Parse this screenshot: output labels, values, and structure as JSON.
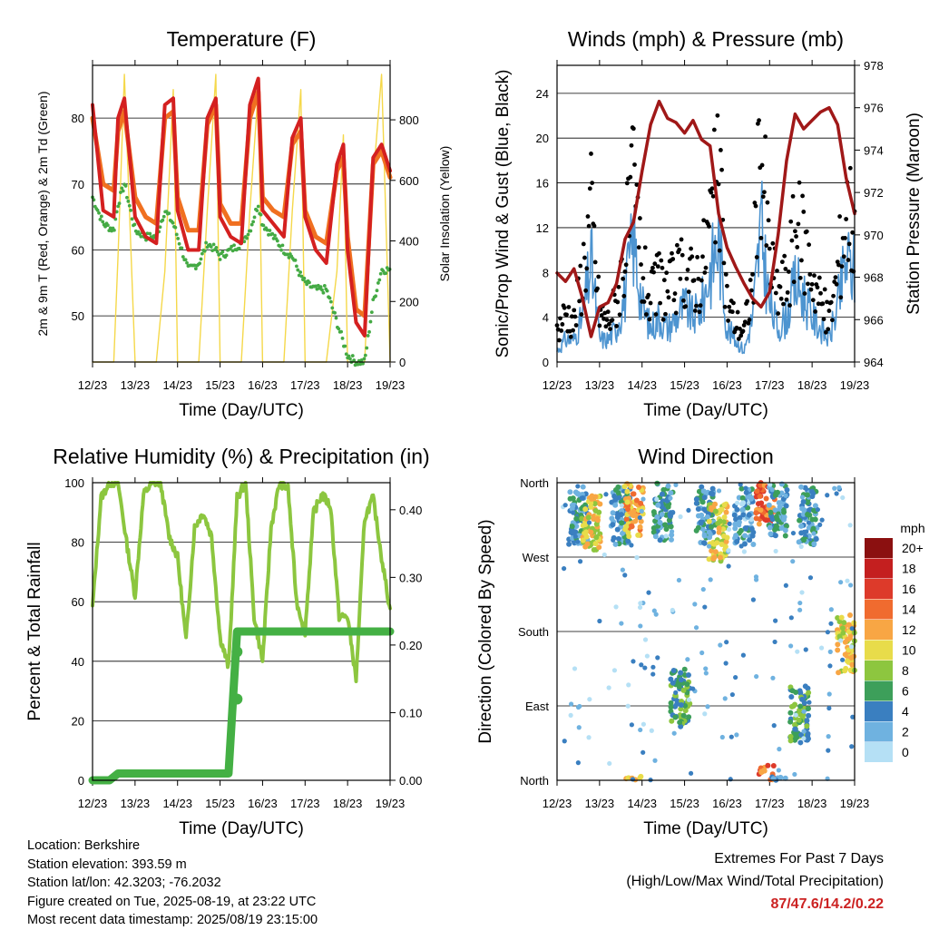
{
  "x_ticks": [
    "12/23",
    "13/23",
    "14/23",
    "15/23",
    "16/23",
    "17/23",
    "18/23",
    "19/23"
  ],
  "colors": {
    "temp2m": "#d42020",
    "temp9m": "#f07020",
    "dewpoint": "#44aa44",
    "solar": "#f5d84a",
    "wind": "#4d94d0",
    "gust": "#000000",
    "pressure": "#a01818",
    "rh": "#8cc63f",
    "precip": "#44b044"
  },
  "extremes": {
    "line1": "Extremes For Past 7 Days",
    "line2": "(High/Low/Max Wind/Total Precipitation)",
    "values": "87/47.6/14.2/0.22"
  },
  "footer": {
    "location": "Location: Berkshire",
    "elevation": "Station elevation: 393.59 m",
    "latlon": "Station lat/lon: 42.3203; -76.2032",
    "created": "Figure created on Tue, 2025-08-19, at 23:22 UTC",
    "recent": "Most recent data timestamp: 2025/08/19 23:15:00"
  },
  "chart_data": [
    {
      "type": "line",
      "title": "Temperature (F)",
      "xlabel": "Time (Day/UTC)",
      "ylabel": "2m & 9m T (Red, Orange) & 2m Td (Green)",
      "ylabel_right": "Solar Insolation (Yellow)",
      "ylim": [
        43,
        88
      ],
      "yticks": [
        50,
        60,
        70,
        80
      ],
      "ylim_right": [
        0,
        980
      ],
      "yticks_right": [
        0,
        200,
        400,
        600,
        800
      ],
      "x": [
        12.0,
        12.25,
        12.5,
        12.6,
        12.75,
        13.0,
        13.25,
        13.5,
        13.7,
        13.9,
        14.0,
        14.25,
        14.5,
        14.7,
        14.9,
        15.0,
        15.25,
        15.5,
        15.7,
        15.9,
        16.0,
        16.25,
        16.5,
        16.7,
        16.9,
        17.0,
        17.25,
        17.5,
        17.75,
        17.9,
        18.0,
        18.2,
        18.4,
        18.6,
        18.8,
        19.0
      ],
      "series": [
        {
          "name": "2m T",
          "values": [
            82,
            66,
            65,
            80,
            83,
            65,
            62,
            61,
            82,
            83,
            66,
            60,
            60,
            80,
            83,
            65,
            62,
            61,
            82,
            86,
            66,
            64,
            62,
            77,
            80,
            65,
            60,
            58,
            73,
            76,
            60,
            49,
            47,
            74,
            76,
            72
          ]
        },
        {
          "name": "9m T",
          "values": [
            80,
            70,
            69,
            78,
            81,
            68,
            65,
            64,
            80,
            81,
            68,
            63,
            63,
            79,
            82,
            67,
            64,
            64,
            80,
            84,
            68,
            66,
            65,
            76,
            78,
            66,
            62,
            61,
            72,
            74,
            62,
            51,
            50,
            73,
            75,
            71
          ]
        },
        {
          "name": "2m Td",
          "values": [
            68,
            64,
            63,
            67,
            70,
            63,
            62,
            62,
            66,
            64,
            62,
            57,
            58,
            61,
            60,
            59,
            60,
            61,
            63,
            67,
            64,
            62,
            60,
            59,
            56,
            55,
            54,
            54,
            49,
            46,
            44,
            43,
            43,
            52,
            57,
            57
          ]
        },
        {
          "name": "Solar Insolation",
          "axis": "right",
          "values": [
            0,
            0,
            0,
            350,
            950,
            0,
            0,
            0,
            300,
            900,
            0,
            0,
            0,
            500,
            950,
            0,
            0,
            0,
            500,
            900,
            0,
            0,
            0,
            500,
            900,
            0,
            0,
            0,
            300,
            750,
            0,
            0,
            0,
            600,
            950,
            0
          ]
        }
      ]
    },
    {
      "type": "line",
      "title": "Winds (mph) & Pressure (mb)",
      "xlabel": "Time (Day/UTC)",
      "ylabel": "Sonic/Prop Wind & Gust (Blue, Black)",
      "ylabel_right": "Station Pressure (Maroon)",
      "ylim": [
        0,
        26.5
      ],
      "yticks": [
        0,
        4,
        8,
        12,
        16,
        20,
        24
      ],
      "ylim_right": [
        964,
        978
      ],
      "yticks_right": [
        964,
        966,
        968,
        970,
        972,
        974,
        976,
        978
      ],
      "x": [
        12.0,
        12.2,
        12.4,
        12.6,
        12.8,
        13.0,
        13.2,
        13.4,
        13.6,
        13.8,
        14.0,
        14.2,
        14.4,
        14.6,
        14.8,
        15.0,
        15.2,
        15.4,
        15.6,
        15.8,
        16.0,
        16.2,
        16.4,
        16.6,
        16.8,
        17.0,
        17.2,
        17.4,
        17.6,
        17.8,
        18.0,
        18.2,
        18.4,
        18.6,
        18.8,
        19.0
      ],
      "series": [
        {
          "name": "Wind",
          "values": [
            1,
            2,
            2,
            4,
            9,
            2,
            2,
            3,
            6,
            11,
            5,
            3,
            4,
            3,
            4,
            5,
            4,
            5,
            8,
            11,
            3,
            2,
            1,
            4,
            12,
            5,
            3,
            4,
            7,
            6,
            4,
            3,
            2,
            5,
            9,
            8
          ]
        },
        {
          "name": "Gust",
          "values": [
            3,
            5,
            4,
            9,
            15,
            5,
            4,
            6,
            11,
            17,
            9,
            6,
            8,
            7,
            8,
            9,
            8,
            9,
            14,
            18,
            6,
            4,
            3,
            8,
            22,
            10,
            7,
            8,
            13,
            12,
            9,
            6,
            4,
            9,
            15,
            14
          ]
        },
        {
          "name": "Pressure",
          "axis": "right",
          "values": [
            968.2,
            967.8,
            968.4,
            967.0,
            965.2,
            966.6,
            966.8,
            967.7,
            969.8,
            970.6,
            973.0,
            975.2,
            976.3,
            975.5,
            975.3,
            974.8,
            975.4,
            974.5,
            974.2,
            971.0,
            969.4,
            968.5,
            967.7,
            967.0,
            966.6,
            967.3,
            970.0,
            973.5,
            975.7,
            975.0,
            975.4,
            975.8,
            976.0,
            975.2,
            972.7,
            971.0
          ]
        }
      ]
    },
    {
      "type": "line",
      "title": "Relative Humidity (%) & Precipitation (in)",
      "xlabel": "Time (Day/UTC)",
      "ylabel": "Percent & Total Rainfall",
      "ylim": [
        0,
        100
      ],
      "yticks": [
        0,
        20,
        40,
        60,
        80,
        100
      ],
      "ylim_right": [
        0,
        0.44
      ],
      "yticks_right": [
        "0.00",
        "0.10",
        "0.20",
        "0.30",
        "0.40"
      ],
      "x": [
        12.0,
        12.2,
        12.4,
        12.6,
        12.8,
        13.0,
        13.2,
        13.4,
        13.6,
        13.8,
        14.0,
        14.2,
        14.4,
        14.6,
        14.8,
        15.0,
        15.2,
        15.4,
        15.6,
        15.8,
        16.0,
        16.2,
        16.4,
        16.6,
        16.8,
        17.0,
        17.2,
        17.4,
        17.6,
        17.8,
        18.0,
        18.2,
        18.4,
        18.6,
        18.8,
        19.0
      ],
      "series": [
        {
          "name": "RH",
          "values": [
            58,
            95,
            100,
            100,
            80,
            62,
            96,
            100,
            100,
            82,
            75,
            47,
            85,
            90,
            82,
            48,
            38,
            95,
            100,
            55,
            40,
            85,
            100,
            98,
            60,
            50,
            90,
            96,
            92,
            55,
            55,
            34,
            88,
            95,
            75,
            57
          ]
        },
        {
          "name": "Precipitation",
          "axis": "right",
          "values": [
            0,
            0,
            0,
            0.01,
            0.01,
            0.01,
            0.01,
            0.01,
            0.01,
            0.01,
            0.01,
            0.01,
            0.01,
            0.01,
            0.01,
            0.01,
            0.01,
            0.22,
            0.22,
            0.22,
            0.22,
            0.22,
            0.22,
            0.22,
            0.22,
            0.22,
            0.22,
            0.22,
            0.22,
            0.22,
            0.22,
            0.22,
            0.22,
            0.22,
            0.22,
            0.22
          ]
        }
      ]
    },
    {
      "type": "scatter",
      "title": "Wind Direction",
      "xlabel": "Time (Day/UTC)",
      "ylabel": "Direction (Colored By Speed)",
      "ylim": [
        0,
        360
      ],
      "yticks": [
        {
          "value": 0,
          "label": "North"
        },
        {
          "value": 90,
          "label": "East"
        },
        {
          "value": 180,
          "label": "South"
        },
        {
          "value": 270,
          "label": "West"
        },
        {
          "value": 360,
          "label": "North"
        }
      ],
      "legend": {
        "title": "mph",
        "labels": [
          "20+",
          "18",
          "16",
          "14",
          "12",
          "10",
          "8",
          "6",
          "4",
          "2",
          "0"
        ],
        "colors": [
          "#8b1010",
          "#c41f1f",
          "#dd3a2a",
          "#f06b2f",
          "#f8a644",
          "#e8dc4a",
          "#8dc63f",
          "#3d9f5a",
          "#3a7fc0",
          "#6fb2e0",
          "#b5e0f5"
        ]
      },
      "points_summary": [
        {
          "x": 12.5,
          "dir": 320,
          "speed": 4
        },
        {
          "x": 12.8,
          "dir": 310,
          "speed": 10
        },
        {
          "x": 13.5,
          "dir": 320,
          "speed": 4
        },
        {
          "x": 13.8,
          "dir": 330,
          "speed": 12
        },
        {
          "x": 14.5,
          "dir": 325,
          "speed": 4
        },
        {
          "x": 14.9,
          "dir": 100,
          "speed": 6
        },
        {
          "x": 15.5,
          "dir": 320,
          "speed": 4
        },
        {
          "x": 15.8,
          "dir": 300,
          "speed": 10
        },
        {
          "x": 16.4,
          "dir": 320,
          "speed": 3
        },
        {
          "x": 16.9,
          "dir": 345,
          "speed": 14
        },
        {
          "x": 17.2,
          "dir": 330,
          "speed": 4
        },
        {
          "x": 17.7,
          "dir": 80,
          "speed": 6
        },
        {
          "x": 17.9,
          "dir": 320,
          "speed": 4
        },
        {
          "x": 18.8,
          "dir": 165,
          "speed": 10
        }
      ]
    }
  ]
}
